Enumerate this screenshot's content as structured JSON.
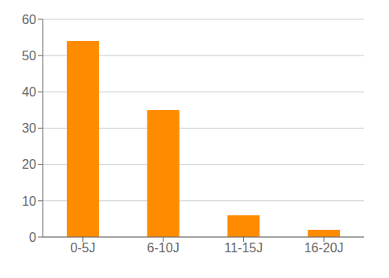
{
  "chart_data": {
    "type": "bar",
    "categories": [
      "0-5J",
      "6-10J",
      "11-15J",
      "16-20J"
    ],
    "values": [
      54,
      35,
      6,
      2
    ],
    "color": "#FF8C00",
    "ylim": [
      0,
      60
    ],
    "yticks": [
      0,
      10,
      20,
      30,
      40,
      50,
      60
    ],
    "grid": true
  }
}
